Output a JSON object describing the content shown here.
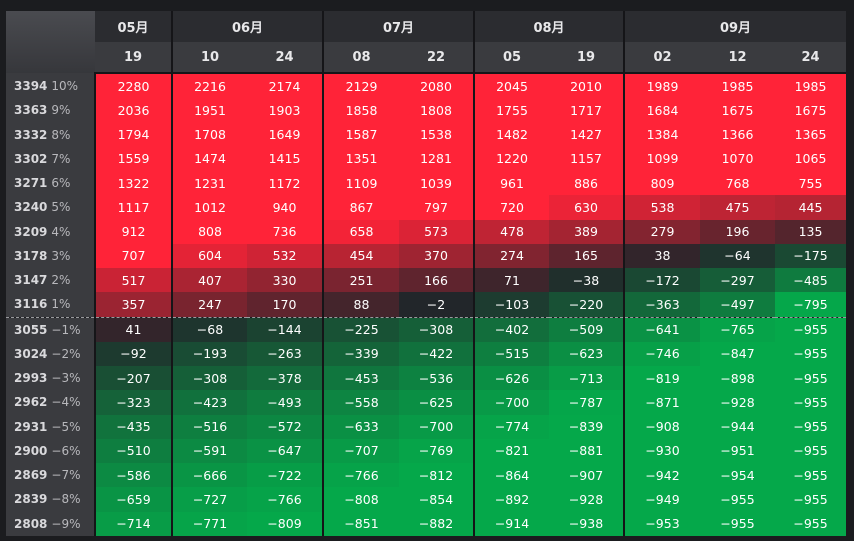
{
  "colors": {
    "red": "#ff2338",
    "green": "#05a84a",
    "dark": "#22252a"
  },
  "months": [
    {
      "label": "05月",
      "span": 1
    },
    {
      "label": "06月",
      "span": 2
    },
    {
      "label": "07月",
      "span": 2
    },
    {
      "label": "08月",
      "span": 2
    },
    {
      "label": "09月",
      "span": 3
    }
  ],
  "days": [
    "19",
    "10",
    "24",
    "08",
    "22",
    "05",
    "19",
    "02",
    "12",
    "24"
  ],
  "rows": [
    {
      "price": "3394",
      "pct": "10%",
      "values": [
        2280,
        2216,
        2174,
        2129,
        2080,
        2045,
        2010,
        1989,
        1985,
        1985
      ]
    },
    {
      "price": "3363",
      "pct": "9%",
      "values": [
        2036,
        1951,
        1903,
        1858,
        1808,
        1755,
        1717,
        1684,
        1675,
        1675
      ]
    },
    {
      "price": "3332",
      "pct": "8%",
      "values": [
        1794,
        1708,
        1649,
        1587,
        1538,
        1482,
        1427,
        1384,
        1366,
        1365
      ]
    },
    {
      "price": "3302",
      "pct": "7%",
      "values": [
        1559,
        1474,
        1415,
        1351,
        1281,
        1220,
        1157,
        1099,
        1070,
        1065
      ]
    },
    {
      "price": "3271",
      "pct": "6%",
      "values": [
        1322,
        1231,
        1172,
        1109,
        1039,
        961,
        886,
        809,
        768,
        755
      ]
    },
    {
      "price": "3240",
      "pct": "5%",
      "values": [
        1117,
        1012,
        940,
        867,
        797,
        720,
        630,
        538,
        475,
        445
      ]
    },
    {
      "price": "3209",
      "pct": "4%",
      "values": [
        912,
        808,
        736,
        658,
        573,
        478,
        389,
        279,
        196,
        135
      ]
    },
    {
      "price": "3178",
      "pct": "3%",
      "values": [
        707,
        604,
        532,
        454,
        370,
        274,
        165,
        38,
        -64,
        -175
      ]
    },
    {
      "price": "3147",
      "pct": "2%",
      "values": [
        517,
        407,
        330,
        251,
        166,
        71,
        -38,
        -172,
        -297,
        -485
      ]
    },
    {
      "price": "3116",
      "pct": "1%",
      "values": [
        357,
        247,
        170,
        88,
        -2,
        -103,
        -220,
        -363,
        -497,
        -795
      ]
    },
    {
      "price": "3055",
      "pct": "−1%",
      "values": [
        41,
        -68,
        -144,
        -225,
        -308,
        -402,
        -509,
        -641,
        -765,
        -955
      ]
    },
    {
      "price": "3024",
      "pct": "−2%",
      "values": [
        -92,
        -193,
        -263,
        -339,
        -422,
        -515,
        -623,
        -746,
        -847,
        -955
      ]
    },
    {
      "price": "2993",
      "pct": "−3%",
      "values": [
        -207,
        -308,
        -378,
        -453,
        -536,
        -626,
        -713,
        -819,
        -898,
        -955
      ]
    },
    {
      "price": "2962",
      "pct": "−4%",
      "values": [
        -323,
        -423,
        -493,
        -558,
        -625,
        -700,
        -787,
        -871,
        -928,
        -955
      ]
    },
    {
      "price": "2931",
      "pct": "−5%",
      "values": [
        -435,
        -516,
        -572,
        -633,
        -700,
        -774,
        -839,
        -908,
        -944,
        -955
      ]
    },
    {
      "price": "2900",
      "pct": "−6%",
      "values": [
        -510,
        -591,
        -647,
        -707,
        -769,
        -821,
        -881,
        -930,
        -951,
        -955
      ]
    },
    {
      "price": "2869",
      "pct": "−7%",
      "values": [
        -586,
        -666,
        -722,
        -766,
        -812,
        -864,
        -907,
        -942,
        -954,
        -955
      ]
    },
    {
      "price": "2839",
      "pct": "−8%",
      "values": [
        -659,
        -727,
        -766,
        -808,
        -854,
        -892,
        -928,
        -949,
        -955,
        -955
      ]
    },
    {
      "price": "2808",
      "pct": "−9%",
      "values": [
        -714,
        -771,
        -809,
        -851,
        -882,
        -914,
        -938,
        -953,
        -955,
        -955
      ]
    }
  ]
}
